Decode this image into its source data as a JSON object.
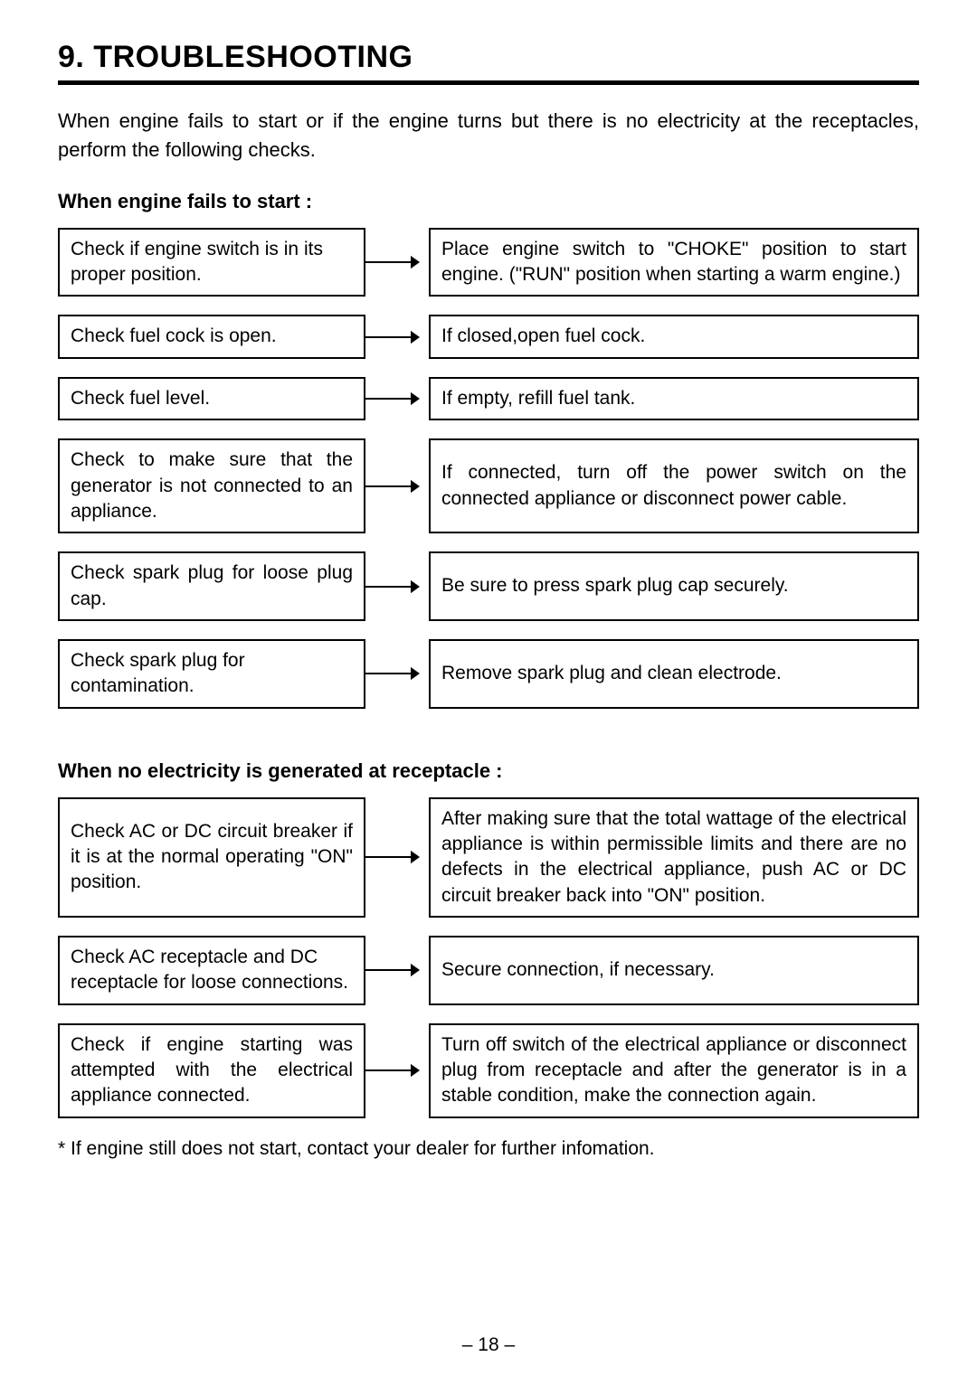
{
  "title": "9. TROUBLESHOOTING",
  "intro": "When engine fails to start or if the engine turns but there is no electricity at the receptacles, perform the following checks.",
  "section1": {
    "heading": "When engine fails to start :",
    "rows": [
      {
        "left": "Check if engine switch is in its proper position.",
        "right": "Place engine switch to \"CHOKE\" position to start engine. (\"RUN\" position when starting a warm engine.)",
        "leftJustify": false,
        "rightJustify": true
      },
      {
        "left": "Check fuel cock is open.",
        "right": "If closed,open fuel cock.",
        "leftJustify": false,
        "rightJustify": false
      },
      {
        "left": "Check fuel level.",
        "right": "If empty, refill fuel tank.",
        "leftJustify": false,
        "rightJustify": false
      },
      {
        "left": "Check to make sure that the generator is not connected to an appliance.",
        "right": "If connected, turn off the power switch on the connected appliance or disconnect power cable.",
        "leftJustify": true,
        "rightJustify": true
      },
      {
        "left": "Check spark plug for loose plug cap.",
        "right": "Be sure to press spark plug cap securely.",
        "leftJustify": true,
        "rightJustify": false
      },
      {
        "left": "Check spark plug for contamination.",
        "right": "Remove spark plug and clean electrode.",
        "leftJustify": false,
        "rightJustify": false
      }
    ]
  },
  "section2": {
    "heading": "When no electricity is generated at receptacle :",
    "rows": [
      {
        "left": "Check AC or DC circuit breaker if it is at the normal operating \"ON\" position.",
        "right": "After making sure that the total wattage of the electrical appliance is within permissible limits and there are no defects in the electrical appliance, push AC or DC circuit breaker back into \"ON\" position.",
        "leftJustify": true,
        "rightJustify": true
      },
      {
        "left": "Check AC receptacle and DC receptacle for loose connections.",
        "right": "Secure connection, if necessary.",
        "leftJustify": false,
        "rightJustify": false
      },
      {
        "left": "Check if engine starting was attempted with the electrical appliance connected.",
        "right": "Turn off switch of the electrical appliance or disconnect plug from  receptacle and after the generator is in a stable condition, make the connection again.",
        "leftJustify": true,
        "rightJustify": true
      }
    ]
  },
  "footnote": "* If engine still does not start, contact your dealer for further infomation.",
  "pageNumber": "–  18  –",
  "colors": {
    "text": "#000000",
    "background": "#ffffff",
    "border": "#000000"
  },
  "arrow": {
    "lineWidth": 2,
    "headSize": 10
  }
}
